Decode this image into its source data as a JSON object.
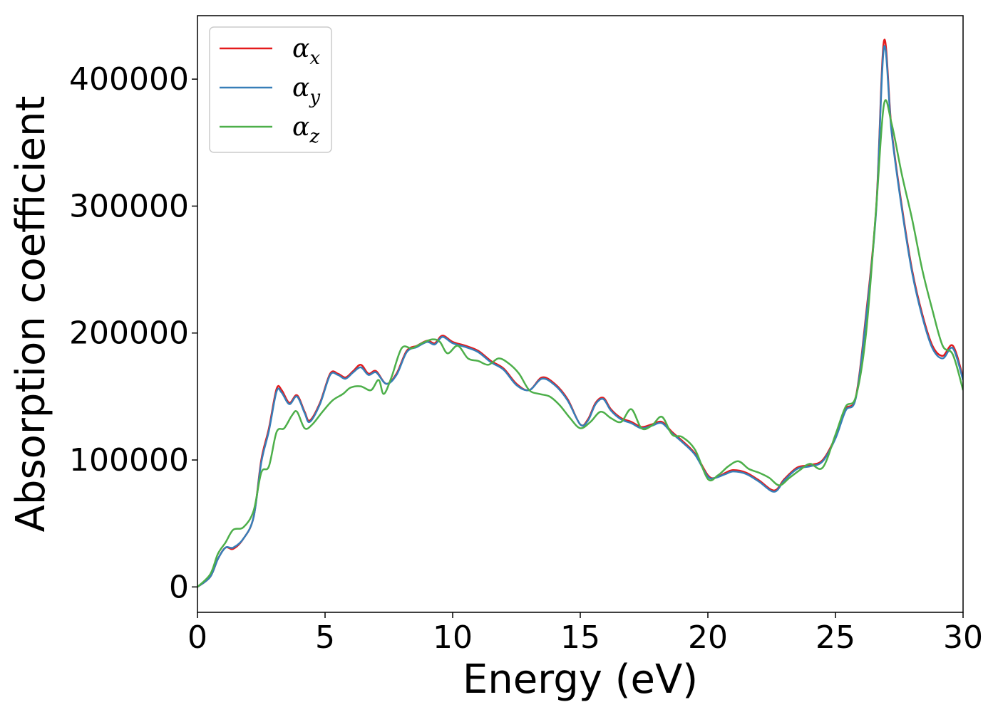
{
  "chart_data": {
    "type": "line",
    "title": "",
    "xlabel": "Energy (eV)",
    "ylabel": "Absorption coefficient",
    "xlim": [
      0,
      30
    ],
    "ylim": [
      -20000,
      450000
    ],
    "xticks": [
      0,
      5,
      10,
      15,
      20,
      25,
      30
    ],
    "yticks": [
      0,
      100000,
      200000,
      300000,
      400000
    ],
    "xtick_labels": [
      "0",
      "5",
      "10",
      "15",
      "20",
      "25",
      "30"
    ],
    "ytick_labels": [
      "0",
      "100000",
      "200000",
      "300000",
      "400000"
    ],
    "grid": false,
    "legend_position": "top-left",
    "series": [
      {
        "name": "αx",
        "symbol": "α",
        "subscript": "x",
        "color": "#e41a1c",
        "points": [
          [
            0,
            0
          ],
          [
            0.5,
            8000
          ],
          [
            0.8,
            22000
          ],
          [
            1.1,
            31000
          ],
          [
            1.4,
            30000
          ],
          [
            1.8,
            38000
          ],
          [
            2.2,
            55000
          ],
          [
            2.5,
            100000
          ],
          [
            2.8,
            125000
          ],
          [
            3.1,
            156000
          ],
          [
            3.3,
            155000
          ],
          [
            3.6,
            145000
          ],
          [
            3.9,
            151000
          ],
          [
            4.2,
            138000
          ],
          [
            4.4,
            131000
          ],
          [
            4.8,
            145000
          ],
          [
            5.2,
            168000
          ],
          [
            5.5,
            168000
          ],
          [
            5.8,
            165000
          ],
          [
            6.1,
            170000
          ],
          [
            6.4,
            175000
          ],
          [
            6.7,
            168000
          ],
          [
            7.0,
            170000
          ],
          [
            7.4,
            160000
          ],
          [
            7.8,
            168000
          ],
          [
            8.2,
            186000
          ],
          [
            8.6,
            190000
          ],
          [
            9.0,
            194000
          ],
          [
            9.3,
            192000
          ],
          [
            9.6,
            198000
          ],
          [
            10.0,
            193000
          ],
          [
            10.5,
            190000
          ],
          [
            11.0,
            186000
          ],
          [
            11.5,
            178000
          ],
          [
            12.0,
            172000
          ],
          [
            12.5,
            160000
          ],
          [
            13.0,
            155000
          ],
          [
            13.5,
            165000
          ],
          [
            14.0,
            160000
          ],
          [
            14.5,
            148000
          ],
          [
            15.0,
            128000
          ],
          [
            15.3,
            132000
          ],
          [
            15.6,
            145000
          ],
          [
            15.9,
            149000
          ],
          [
            16.2,
            140000
          ],
          [
            16.6,
            133000
          ],
          [
            17.0,
            130000
          ],
          [
            17.4,
            126000
          ],
          [
            17.8,
            128000
          ],
          [
            18.2,
            130000
          ],
          [
            18.6,
            122000
          ],
          [
            19.0,
            115000
          ],
          [
            19.5,
            105000
          ],
          [
            20.0,
            88000
          ],
          [
            20.3,
            86000
          ],
          [
            20.7,
            90000
          ],
          [
            21.0,
            92000
          ],
          [
            21.5,
            90000
          ],
          [
            22.0,
            84000
          ],
          [
            22.6,
            76000
          ],
          [
            23.0,
            85000
          ],
          [
            23.5,
            94000
          ],
          [
            24.0,
            96000
          ],
          [
            24.5,
            100000
          ],
          [
            25.0,
            118000
          ],
          [
            25.4,
            140000
          ],
          [
            25.8,
            150000
          ],
          [
            26.2,
            215000
          ],
          [
            26.6,
            300000
          ],
          [
            26.9,
            430000
          ],
          [
            27.2,
            360000
          ],
          [
            27.6,
            300000
          ],
          [
            28.0,
            250000
          ],
          [
            28.4,
            215000
          ],
          [
            28.8,
            190000
          ],
          [
            29.2,
            182000
          ],
          [
            29.6,
            190000
          ],
          [
            30,
            165000
          ]
        ]
      },
      {
        "name": "αy",
        "symbol": "α",
        "subscript": "y",
        "color": "#377eb8",
        "points": [
          [
            0,
            0
          ],
          [
            0.5,
            8000
          ],
          [
            0.8,
            22000
          ],
          [
            1.1,
            31000
          ],
          [
            1.4,
            31000
          ],
          [
            1.8,
            38000
          ],
          [
            2.2,
            55000
          ],
          [
            2.5,
            98000
          ],
          [
            2.8,
            123000
          ],
          [
            3.1,
            154000
          ],
          [
            3.3,
            153000
          ],
          [
            3.6,
            144000
          ],
          [
            3.9,
            150000
          ],
          [
            4.2,
            137000
          ],
          [
            4.4,
            130000
          ],
          [
            4.8,
            144000
          ],
          [
            5.2,
            167000
          ],
          [
            5.5,
            167000
          ],
          [
            5.8,
            164000
          ],
          [
            6.1,
            169000
          ],
          [
            6.4,
            173000
          ],
          [
            6.7,
            167000
          ],
          [
            7.0,
            169000
          ],
          [
            7.4,
            160000
          ],
          [
            7.8,
            167000
          ],
          [
            8.2,
            185000
          ],
          [
            8.6,
            189000
          ],
          [
            9.0,
            193000
          ],
          [
            9.3,
            191000
          ],
          [
            9.6,
            197000
          ],
          [
            10.0,
            192000
          ],
          [
            10.5,
            189000
          ],
          [
            11.0,
            185000
          ],
          [
            11.5,
            177000
          ],
          [
            12.0,
            171000
          ],
          [
            12.5,
            159000
          ],
          [
            13.0,
            155000
          ],
          [
            13.5,
            164000
          ],
          [
            14.0,
            159000
          ],
          [
            14.5,
            147000
          ],
          [
            15.0,
            128000
          ],
          [
            15.3,
            131000
          ],
          [
            15.6,
            144000
          ],
          [
            15.9,
            148000
          ],
          [
            16.2,
            139000
          ],
          [
            16.6,
            132000
          ],
          [
            17.0,
            129000
          ],
          [
            17.4,
            125000
          ],
          [
            17.8,
            127000
          ],
          [
            18.2,
            129000
          ],
          [
            18.6,
            121000
          ],
          [
            19.0,
            114000
          ],
          [
            19.5,
            104000
          ],
          [
            20.0,
            87000
          ],
          [
            20.3,
            86000
          ],
          [
            20.7,
            89000
          ],
          [
            21.0,
            91000
          ],
          [
            21.5,
            89000
          ],
          [
            22.0,
            83000
          ],
          [
            22.6,
            75000
          ],
          [
            23.0,
            84000
          ],
          [
            23.5,
            93000
          ],
          [
            24.0,
            95000
          ],
          [
            24.5,
            99000
          ],
          [
            25.0,
            117000
          ],
          [
            25.4,
            139000
          ],
          [
            25.8,
            149000
          ],
          [
            26.2,
            212000
          ],
          [
            26.6,
            298000
          ],
          [
            26.9,
            425000
          ],
          [
            27.2,
            358000
          ],
          [
            27.6,
            298000
          ],
          [
            28.0,
            248000
          ],
          [
            28.4,
            213000
          ],
          [
            28.8,
            188000
          ],
          [
            29.2,
            180000
          ],
          [
            29.6,
            188000
          ],
          [
            30,
            163000
          ]
        ]
      },
      {
        "name": "αz",
        "symbol": "α",
        "subscript": "z",
        "color": "#4daf4a",
        "points": [
          [
            0,
            0
          ],
          [
            0.5,
            10000
          ],
          [
            0.8,
            26000
          ],
          [
            1.1,
            35000
          ],
          [
            1.4,
            45000
          ],
          [
            1.8,
            47000
          ],
          [
            2.2,
            60000
          ],
          [
            2.5,
            90000
          ],
          [
            2.8,
            95000
          ],
          [
            3.1,
            122000
          ],
          [
            3.4,
            125000
          ],
          [
            3.7,
            135000
          ],
          [
            3.9,
            138000
          ],
          [
            4.2,
            125000
          ],
          [
            4.5,
            128000
          ],
          [
            4.9,
            138000
          ],
          [
            5.3,
            147000
          ],
          [
            5.7,
            152000
          ],
          [
            6.0,
            157000
          ],
          [
            6.4,
            158000
          ],
          [
            6.8,
            155000
          ],
          [
            7.1,
            163000
          ],
          [
            7.3,
            152000
          ],
          [
            7.6,
            165000
          ],
          [
            8.0,
            188000
          ],
          [
            8.4,
            188000
          ],
          [
            8.8,
            192000
          ],
          [
            9.2,
            195000
          ],
          [
            9.5,
            193000
          ],
          [
            9.8,
            184000
          ],
          [
            10.2,
            190000
          ],
          [
            10.6,
            180000
          ],
          [
            11.0,
            178000
          ],
          [
            11.4,
            175000
          ],
          [
            11.8,
            180000
          ],
          [
            12.2,
            176000
          ],
          [
            12.6,
            168000
          ],
          [
            13.0,
            155000
          ],
          [
            13.4,
            152000
          ],
          [
            13.8,
            150000
          ],
          [
            14.2,
            143000
          ],
          [
            14.6,
            133000
          ],
          [
            15.0,
            125000
          ],
          [
            15.4,
            130000
          ],
          [
            15.8,
            138000
          ],
          [
            16.2,
            133000
          ],
          [
            16.6,
            130000
          ],
          [
            17.0,
            140000
          ],
          [
            17.4,
            125000
          ],
          [
            17.8,
            127000
          ],
          [
            18.2,
            134000
          ],
          [
            18.6,
            120000
          ],
          [
            19.0,
            118000
          ],
          [
            19.5,
            108000
          ],
          [
            20.0,
            85000
          ],
          [
            20.4,
            88000
          ],
          [
            20.8,
            95000
          ],
          [
            21.2,
            99000
          ],
          [
            21.6,
            93000
          ],
          [
            22.0,
            90000
          ],
          [
            22.4,
            86000
          ],
          [
            22.8,
            80000
          ],
          [
            23.2,
            86000
          ],
          [
            23.6,
            92000
          ],
          [
            24.0,
            97000
          ],
          [
            24.5,
            94000
          ],
          [
            25.0,
            120000
          ],
          [
            25.4,
            142000
          ],
          [
            25.8,
            150000
          ],
          [
            26.2,
            200000
          ],
          [
            26.6,
            300000
          ],
          [
            26.9,
            380000
          ],
          [
            27.2,
            365000
          ],
          [
            27.6,
            325000
          ],
          [
            28.0,
            290000
          ],
          [
            28.4,
            250000
          ],
          [
            28.8,
            218000
          ],
          [
            29.2,
            190000
          ],
          [
            29.6,
            183000
          ],
          [
            30,
            155000
          ]
        ]
      }
    ]
  }
}
